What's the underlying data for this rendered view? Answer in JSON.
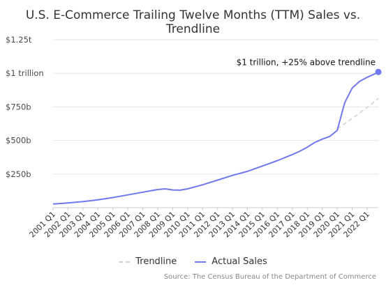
{
  "chart_data": {
    "type": "line",
    "title": "U.S. E-Commerce Trailing Twelve Months (TTM) Sales vs. Trendline",
    "xlabel": "",
    "ylabel": "",
    "ylim": [
      0,
      1250
    ],
    "y_ticks": [
      {
        "value": 250,
        "label": "$250b"
      },
      {
        "value": 500,
        "label": "$500b"
      },
      {
        "value": 750,
        "label": "$750b"
      },
      {
        "value": 1000,
        "label": "$1 trillion"
      },
      {
        "value": 1250,
        "label": "$1.25t"
      }
    ],
    "x_range": [
      2001.0,
      2022.75
    ],
    "x_ticks": [
      "2001 Q1",
      "2002 Q1",
      "2003 Q1",
      "2004 Q1",
      "2005 Q1",
      "2006 Q1",
      "2007 Q1",
      "2008 Q1",
      "2009 Q1",
      "2010 Q1",
      "2011 Q1",
      "2012 Q1",
      "2013 Q1",
      "2014 Q1",
      "2015 Q1",
      "2016 Q1",
      "2017 Q1",
      "2018 Q1",
      "2019 Q1",
      "2020 Q1",
      "2021 Q1",
      "2022 Q1"
    ],
    "grid": true,
    "legend_position": "bottom",
    "series": [
      {
        "name": "Trendline",
        "style": "dashed",
        "color": "#d0d0d0",
        "x": [
          2020.0,
          2020.5,
          2021.0,
          2021.5,
          2022.0,
          2022.5,
          2022.75
        ],
        "y": [
          585,
          625,
          665,
          705,
          745,
          790,
          815
        ]
      },
      {
        "name": "Actual Sales",
        "style": "solid",
        "color": "#6f78f0",
        "x": [
          2001.0,
          2002.0,
          2003.0,
          2004.0,
          2005.0,
          2006.0,
          2007.0,
          2007.5,
          2008.0,
          2008.5,
          2009.0,
          2009.5,
          2010.0,
          2011.0,
          2012.0,
          2013.0,
          2014.0,
          2015.0,
          2016.0,
          2017.0,
          2017.5,
          2018.0,
          2018.5,
          2019.0,
          2019.5,
          2020.0,
          2020.5,
          2021.0,
          2021.5,
          2022.0,
          2022.5,
          2022.75
        ],
        "y": [
          27,
          35,
          45,
          58,
          75,
          95,
          115,
          125,
          135,
          140,
          132,
          130,
          140,
          170,
          205,
          240,
          270,
          310,
          350,
          395,
          420,
          450,
          485,
          510,
          530,
          575,
          780,
          890,
          940,
          970,
          995,
          1010
        ]
      }
    ],
    "annotation": {
      "text": "$1 trillion, +25% above trendline",
      "x": 2022.75,
      "y": 1010
    }
  },
  "source": "Source: The Census Bureau of the Department of Commerce",
  "colors": {
    "actual": "#6f78f0",
    "trend": "#d0d0d0",
    "grid": "#e6e6e6",
    "axis": "#cccccc"
  }
}
